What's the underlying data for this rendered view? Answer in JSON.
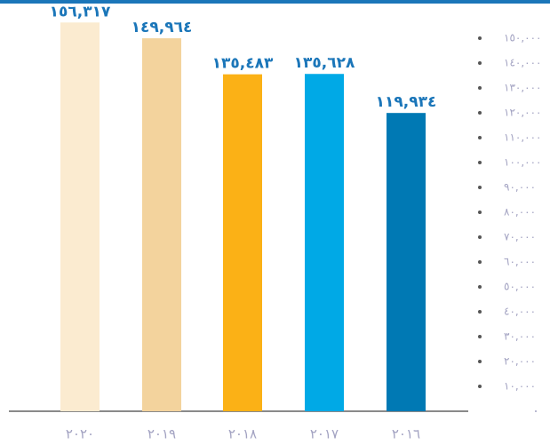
{
  "chart_data": {
    "type": "bar",
    "categories": [
      "٢٠٢٠",
      "٢٠١٩",
      "٢٠١٨",
      "٢٠١٧",
      "٢٠١٦"
    ],
    "values": [
      156317,
      149964,
      135483,
      135628,
      119934
    ],
    "value_labels": [
      "١٥٦,٣١٧",
      "١٤٩,٩٦٤",
      "١٣٥,٤٨٣",
      "١٣٥,٦٢٨",
      "١١٩,٩٣٤"
    ],
    "colors": [
      "#fbebd0",
      "#f3d39d",
      "#fbb116",
      "#00a9e6",
      "#0079b4"
    ],
    "ylim": [
      0,
      160000
    ],
    "yticks": [
      {
        "value": 0,
        "label": "٠"
      },
      {
        "value": 10000,
        "label": "١٠,٠٠٠"
      },
      {
        "value": 20000,
        "label": "٢٠,٠٠٠"
      },
      {
        "value": 30000,
        "label": "٣٠,٠٠٠"
      },
      {
        "value": 40000,
        "label": "٤٠,٠٠٠"
      },
      {
        "value": 50000,
        "label": "٥٠,٠٠٠"
      },
      {
        "value": 60000,
        "label": "٦٠,٠٠٠"
      },
      {
        "value": 70000,
        "label": "٧٠,٠٠٠"
      },
      {
        "value": 80000,
        "label": "٨٠,٠٠٠"
      },
      {
        "value": 90000,
        "label": "٩٠,٠٠٠"
      },
      {
        "value": 100000,
        "label": "١٠٠,٠٠٠"
      },
      {
        "value": 110000,
        "label": "١١٠,٠٠٠"
      },
      {
        "value": 120000,
        "label": "١٢٠,٠٠٠"
      },
      {
        "value": 130000,
        "label": "١٣٠,٠٠٠"
      },
      {
        "value": 140000,
        "label": "١٤٠,٠٠٠"
      },
      {
        "value": 150000,
        "label": "١٥٠,٠٠٠"
      }
    ],
    "grid": false
  }
}
